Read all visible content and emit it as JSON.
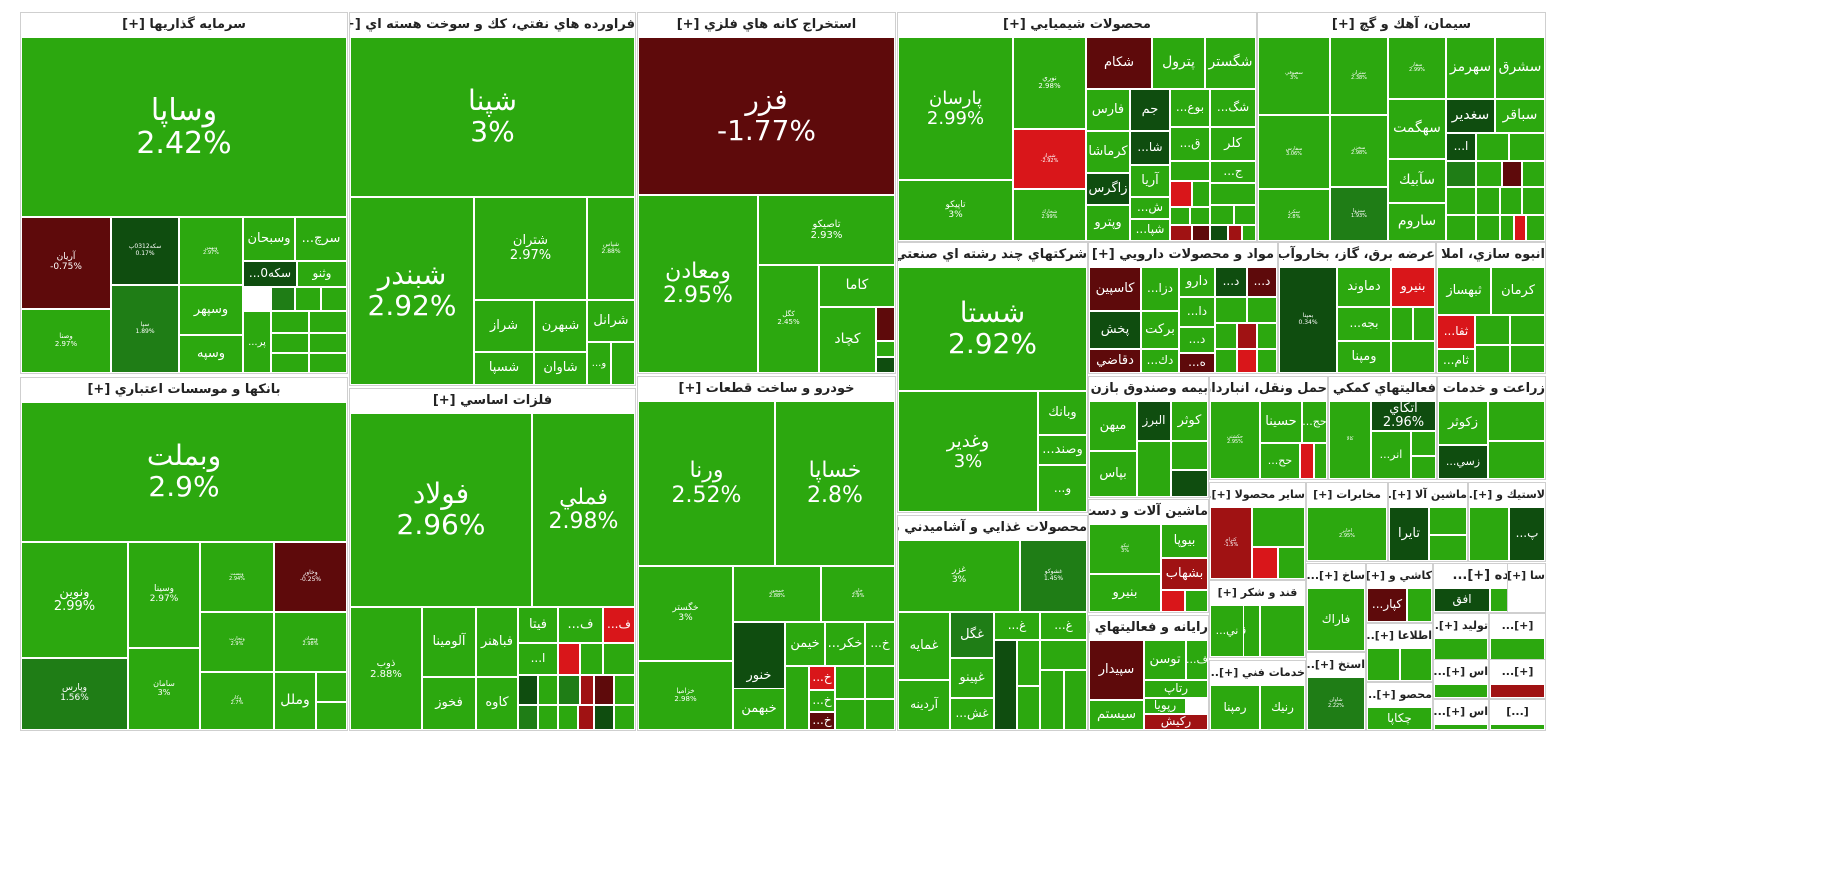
{
  "colors": {
    "up_strong": "#2ca80f",
    "up_mid": "#1f7d16",
    "up_dark": "#0f4d0f",
    "down_light": "#d9161a",
    "down_mid": "#a01213",
    "down_dark": "#5e0a0b",
    "bg": "#ffffff"
  },
  "chart_data": {
    "type": "treemap",
    "sectors": [
      {
        "name": "سرمايه گذاريها [+]",
        "tickers": [
          {
            "symbol": "وساپا",
            "change": "2.42%"
          },
          {
            "symbol": "آريان",
            "change": "-0.75%"
          },
          {
            "symbol": "سكه0312پ",
            "change": "0.17%"
          },
          {
            "symbol": "وبهمن",
            "change": "2.97%"
          },
          {
            "symbol": "وسبحان",
            "change": ""
          },
          {
            "symbol": "...سرچ",
            "change": ""
          },
          {
            "symbol": "...سكه0",
            "change": ""
          },
          {
            "symbol": "وثنو",
            "change": ""
          },
          {
            "symbol": "وصنا",
            "change": "2.97%"
          },
          {
            "symbol": "سپا",
            "change": "1.89%"
          },
          {
            "symbol": "وسپهر",
            "change": ""
          },
          {
            "symbol": "وسپه",
            "change": ""
          },
          {
            "symbol": "...پر",
            "change": ""
          }
        ]
      },
      {
        "name": "فراورده هاي نفتي، كك و سوخت هسته اي [+]",
        "tickers": [
          {
            "symbol": "شپنا",
            "change": "3%"
          },
          {
            "symbol": "شبندر",
            "change": "2.92%"
          },
          {
            "symbol": "شتران",
            "change": "2.97%"
          },
          {
            "symbol": "شپاس",
            "change": "2.88%"
          },
          {
            "symbol": "شراز",
            "change": ""
          },
          {
            "symbol": "شبهرن",
            "change": ""
          },
          {
            "symbol": "شرانل",
            "change": ""
          },
          {
            "symbol": "شسپا",
            "change": ""
          },
          {
            "symbol": "شاوان",
            "change": ""
          },
          {
            "symbol": "...و",
            "change": ""
          }
        ]
      },
      {
        "name": "استخراج كانه هاي فلزي [+]",
        "tickers": [
          {
            "symbol": "فزر",
            "change": "-1.77%"
          },
          {
            "symbol": "ومعادن",
            "change": "2.95%"
          },
          {
            "symbol": "تاصيكو",
            "change": "2.93%"
          },
          {
            "symbol": "كگل",
            "change": "2.45%"
          },
          {
            "symbol": "كاما",
            "change": ""
          },
          {
            "symbol": "كچاد",
            "change": ""
          }
        ]
      },
      {
        "name": "محصولات شيميايي [+]",
        "tickers": [
          {
            "symbol": "پارسان",
            "change": "2.99%"
          },
          {
            "symbol": "نوري",
            "change": "2.98%"
          },
          {
            "symbol": "شكام",
            "change": ""
          },
          {
            "symbol": "پترول",
            "change": ""
          },
          {
            "symbol": "شگستر",
            "change": ""
          },
          {
            "symbol": "فارس",
            "change": ""
          },
          {
            "symbol": "جم",
            "change": ""
          },
          {
            "symbol": "...بوع",
            "change": ""
          },
          {
            "symbol": "...شگ",
            "change": ""
          },
          {
            "symbol": "شيراز",
            "change": "-2.92%"
          },
          {
            "symbol": "كرماشا",
            "change": ""
          },
          {
            "symbol": "...شا",
            "change": ""
          },
          {
            "symbol": "...ق",
            "change": ""
          },
          {
            "symbol": "كلر",
            "change": ""
          },
          {
            "symbol": "تاپيكو",
            "change": "3%"
          },
          {
            "symbol": "زاگرس",
            "change": ""
          },
          {
            "symbol": "آريا",
            "change": ""
          },
          {
            "symbol": "...ج",
            "change": ""
          },
          {
            "symbol": "شخارك",
            "change": "2.99%"
          },
          {
            "symbol": "وپترو",
            "change": ""
          },
          {
            "symbol": "...ش",
            "change": ""
          },
          {
            "symbol": "...شپا",
            "change": ""
          }
        ]
      },
      {
        "name": "سيمان، آهك و گچ [+]",
        "tickers": [
          {
            "symbol": "سصوفي",
            "change": "3%"
          },
          {
            "symbol": "ستران",
            "change": "2.38%"
          },
          {
            "symbol": "سفار",
            "change": "2.99%"
          },
          {
            "symbol": "سهرمز",
            "change": ""
          },
          {
            "symbol": "سشرق",
            "change": ""
          },
          {
            "symbol": "سفارس",
            "change": "3.06%"
          },
          {
            "symbol": "سخزر",
            "change": "2.98%"
          },
          {
            "symbol": "سهگمت",
            "change": ""
          },
          {
            "symbol": "سغدير",
            "change": ""
          },
          {
            "symbol": "سباقر",
            "change": ""
          },
          {
            "symbol": "...ا",
            "change": ""
          },
          {
            "symbol": "سكرد",
            "change": "2.8%"
          },
          {
            "symbol": "سبزوا",
            "change": "1.93%"
          },
          {
            "symbol": "سآبيك",
            "change": ""
          },
          {
            "symbol": "ساروم",
            "change": ""
          }
        ]
      },
      {
        "name": "بانكها و موسسات اعتباري [+]",
        "tickers": [
          {
            "symbol": "وبملت",
            "change": "2.9%"
          },
          {
            "symbol": "ونوين",
            "change": "2.99%"
          },
          {
            "symbol": "وسينا",
            "change": "2.97%"
          },
          {
            "symbol": "وپست",
            "change": "2.94%"
          },
          {
            "symbol": "وخاور",
            "change": "-0.25%"
          },
          {
            "symbol": "وپارس",
            "change": "1.56%"
          },
          {
            "symbol": "سامان",
            "change": "3%"
          },
          {
            "symbol": "وتجارت",
            "change": "2.9%"
          },
          {
            "symbol": "وبصادر",
            "change": "2.98%"
          },
          {
            "symbol": "وكار",
            "change": "2.7%"
          },
          {
            "symbol": "وملل",
            "change": ""
          }
        ]
      },
      {
        "name": "فلزات اساسي [+]",
        "tickers": [
          {
            "symbol": "فولاد",
            "change": "2.96%"
          },
          {
            "symbol": "فملي",
            "change": "2.98%"
          },
          {
            "symbol": "ذوب",
            "change": "2.88%"
          },
          {
            "symbol": "آلومينا",
            "change": ""
          },
          {
            "symbol": "فباهنر",
            "change": ""
          },
          {
            "symbol": "فيتا",
            "change": ""
          },
          {
            "symbol": "...ف",
            "change": ""
          },
          {
            "symbol": "...ف",
            "change": ""
          },
          {
            "symbol": "...ا",
            "change": ""
          },
          {
            "symbol": "فخوز",
            "change": ""
          },
          {
            "symbol": "كاوه",
            "change": ""
          }
        ]
      },
      {
        "name": "خودرو و ساخت قطعات [+]",
        "tickers": [
          {
            "symbol": "ورنا",
            "change": "2.52%"
          },
          {
            "symbol": "خساپا",
            "change": "2.8%"
          },
          {
            "symbol": "خگستر",
            "change": "3%"
          },
          {
            "symbol": "خمحور",
            "change": "2.88%"
          },
          {
            "symbol": "خاور",
            "change": "2.9%"
          },
          {
            "symbol": "خنور",
            "change": ""
          },
          {
            "symbol": "خيمن",
            "change": ""
          },
          {
            "symbol": "...خكر",
            "change": ""
          },
          {
            "symbol": "...خ",
            "change": ""
          },
          {
            "symbol": "خزاميا",
            "change": "2.98%"
          },
          {
            "symbol": "خبهمن",
            "change": ""
          },
          {
            "symbol": "...خ",
            "change": ""
          },
          {
            "symbol": "...خ",
            "change": ""
          },
          {
            "symbol": "...خ",
            "change": ""
          }
        ]
      },
      {
        "name": "شركتهاي چند رشته اي صنعتي [+]",
        "tickers": [
          {
            "symbol": "شستا",
            "change": "2.92%"
          },
          {
            "symbol": "وغدير",
            "change": "3%"
          },
          {
            "symbol": "وبانك",
            "change": ""
          },
          {
            "symbol": "...وصند",
            "change": ""
          },
          {
            "symbol": "...و",
            "change": ""
          }
        ]
      },
      {
        "name": "محصولات غذايي و آشاميدني به جز [+]",
        "tickers": [
          {
            "symbol": "غزر",
            "change": "3%"
          },
          {
            "symbol": "غشوكو",
            "change": "1.45%"
          },
          {
            "symbol": "غمايه",
            "change": ""
          },
          {
            "symbol": "غگل",
            "change": ""
          },
          {
            "symbol": "...غ",
            "change": ""
          },
          {
            "symbol": "...غ",
            "change": ""
          },
          {
            "symbol": "غپينو",
            "change": ""
          },
          {
            "symbol": "آردينه",
            "change": ""
          },
          {
            "symbol": "...غش",
            "change": ""
          }
        ]
      },
      {
        "name": "مواد و محصولات دارويي [+]",
        "tickers": [
          {
            "symbol": "كاسپين",
            "change": ""
          },
          {
            "symbol": "...دزا",
            "change": ""
          },
          {
            "symbol": "دارو",
            "change": ""
          },
          {
            "symbol": "...د",
            "change": ""
          },
          {
            "symbol": "...د",
            "change": ""
          },
          {
            "symbol": "پخش",
            "change": ""
          },
          {
            "symbol": "بركت",
            "change": ""
          },
          {
            "symbol": "...دا",
            "change": ""
          },
          {
            "symbol": "...د",
            "change": ""
          },
          {
            "symbol": "دقاضي",
            "change": ""
          },
          {
            "symbol": "...دك",
            "change": ""
          },
          {
            "symbol": "...ه",
            "change": ""
          }
        ]
      },
      {
        "name": "عرضه برق، گاز، بخاروآب گرم [+]",
        "tickers": [
          {
            "symbol": "بمپنا",
            "change": "0.34%"
          },
          {
            "symbol": "دماوند",
            "change": ""
          },
          {
            "symbol": "بنيرو",
            "change": ""
          },
          {
            "symbol": "...بجه",
            "change": ""
          },
          {
            "symbol": "مپنا",
            "change": ""
          },
          {
            "symbol": "ومپنا",
            "change": ""
          }
        ]
      },
      {
        "name": "انبوه سازي، املا [+]...",
        "tickers": [
          {
            "symbol": "ثبهساز",
            "change": ""
          },
          {
            "symbol": "كرمان",
            "change": ""
          },
          {
            "symbol": "...ثفا",
            "change": ""
          },
          {
            "symbol": "...ثام",
            "change": ""
          }
        ]
      },
      {
        "name": "بيمه وصندوق بازن [+]...",
        "tickers": [
          {
            "symbol": "كوثر",
            "change": ""
          },
          {
            "symbol": "البرز",
            "change": ""
          },
          {
            "symbol": "ميهن",
            "change": ""
          },
          {
            "symbol": "بپاس",
            "change": ""
          }
        ]
      },
      {
        "name": "حمل ونقل، انباردار [+]...",
        "tickers": [
          {
            "symbol": "حكشتي",
            "change": "2.95%"
          },
          {
            "symbol": "حسينا",
            "change": ""
          },
          {
            "symbol": "...حج",
            "change": ""
          },
          {
            "symbol": "...حح",
            "change": ""
          }
        ]
      },
      {
        "name": "فعاليتهاي كمكي [+]...",
        "tickers": [
          {
            "symbol": "كالا",
            "change": ""
          },
          {
            "symbol": "اتكاي",
            "change": "2.96%"
          },
          {
            "symbol": "...انر",
            "change": ""
          }
        ]
      },
      {
        "name": "زراعت و خدمات [+]...",
        "tickers": [
          {
            "symbol": "زكوثر",
            "change": ""
          },
          {
            "symbol": "...زسي",
            "change": ""
          }
        ]
      },
      {
        "name": "ماشين آلات و دست [+]...",
        "tickers": [
          {
            "symbol": "تپكو",
            "change": "3%"
          },
          {
            "symbol": "بيوپا",
            "change": ""
          },
          {
            "symbol": "بشهاب",
            "change": ""
          },
          {
            "symbol": "بنيرو",
            "change": ""
          }
        ]
      },
      {
        "name": "رايانه و فعاليتهاي [+]...",
        "tickers": [
          {
            "symbol": "سپيدار",
            "change": ""
          },
          {
            "symbol": "توسن",
            "change": ""
          },
          {
            "symbol": "...ف",
            "change": ""
          },
          {
            "symbol": "رتاپ",
            "change": ""
          },
          {
            "symbol": "سيستم",
            "change": ""
          },
          {
            "symbol": "رپويا",
            "change": ""
          },
          {
            "symbol": "ركيش",
            "change": ""
          }
        ]
      },
      {
        "name": "ساير محصولا [+]...",
        "tickers": [
          {
            "symbol": "كترام",
            "change": "-1.5%"
          }
        ]
      },
      {
        "name": "قند و شكر [+]",
        "tickers": [
          {
            "symbol": "...قتا",
            "change": ""
          },
          {
            "symbol": "...ني",
            "change": ""
          }
        ]
      },
      {
        "name": "خدمات فني [+]...",
        "tickers": [
          {
            "symbol": "رنيك",
            "change": ""
          },
          {
            "symbol": "رمپنا",
            "change": ""
          }
        ]
      },
      {
        "name": "مخابرات [+]",
        "tickers": [
          {
            "symbol": "اخابر",
            "change": "2.95%"
          }
        ]
      },
      {
        "name": "ماشين آلا [+]...",
        "tickers": [
          {
            "symbol": "تايرا",
            "change": ""
          }
        ]
      },
      {
        "name": "لاستيك و [+]...",
        "tickers": [
          {
            "symbol": "...پ",
            "change": ""
          }
        ]
      },
      {
        "name": "ساخ [+]...",
        "tickers": [
          {
            "symbol": "فاراك",
            "change": ""
          }
        ]
      },
      {
        "name": "كاشي و [+]...",
        "tickers": [
          {
            "symbol": "...كپار",
            "change": ""
          }
        ]
      },
      {
        "name": "خرده [+]...",
        "tickers": [
          {
            "symbol": "افق",
            "change": ""
          }
        ]
      },
      {
        "name": "سا [+]...",
        "tickers": []
      },
      {
        "name": "اطلاعا [+]...",
        "tickers": []
      },
      {
        "name": "تولید [+]...",
        "tickers": []
      },
      {
        "name": "[+]...",
        "tickers": []
      },
      {
        "name": "استخ [+]...",
        "tickers": [
          {
            "symbol": "شاوان",
            "change": "2.22%"
          }
        ]
      },
      {
        "name": "محصو [+]...",
        "tickers": [
          {
            "symbol": "چكاپا",
            "change": ""
          }
        ]
      },
      {
        "name": "اس [+]...",
        "tickers": []
      },
      {
        "name": "[+]...",
        "tickers": []
      },
      {
        "name": "اس [+]...",
        "tickers": []
      },
      {
        "name": "[...]",
        "tickers": []
      }
    ]
  }
}
